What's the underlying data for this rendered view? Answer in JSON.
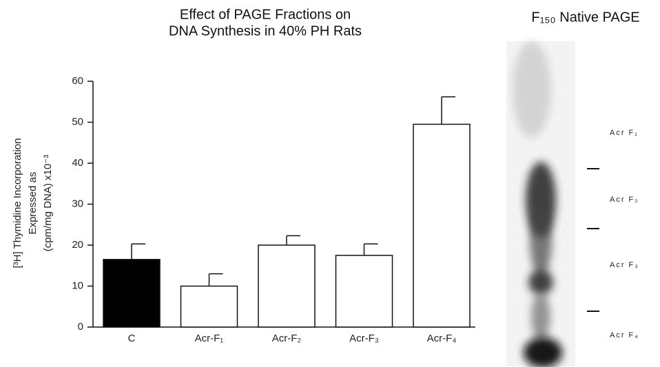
{
  "chart_data": {
    "type": "bar",
    "title": [
      "Effect of PAGE Fractions on",
      "DNA Synthesis in 40% PH Rats"
    ],
    "y_label": [
      "[³H] Thymidine Incorporation",
      "Expressed as",
      "(cpm/mg DNA) x10⁻³"
    ],
    "categories": [
      "C",
      "Acr-F₁",
      "Acr-F₂",
      "Acr-F₃",
      "Acr-F₄"
    ],
    "values": [
      16.5,
      10,
      20,
      17.5,
      49.5
    ],
    "errors": [
      3.8,
      3,
      2.3,
      2.8,
      6.7
    ],
    "colors": [
      "#000000",
      "#ffffff",
      "#ffffff",
      "#ffffff",
      "#ffffff"
    ],
    "ylim": [
      0,
      60
    ],
    "yticks": [
      0,
      10,
      20,
      30,
      40,
      50,
      60
    ]
  },
  "gel": {
    "title": "F₁₅₀ Native PAGE",
    "bands": [
      "Acr F₁",
      "Acr F₂",
      "Acr F₃",
      "Acr F₄"
    ]
  }
}
